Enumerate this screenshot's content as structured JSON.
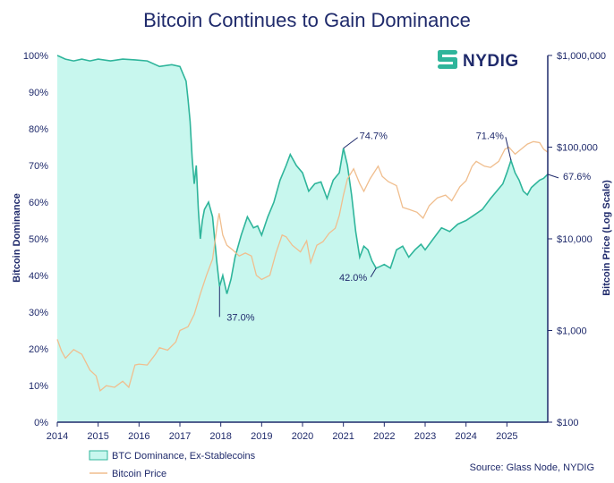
{
  "chart_data": {
    "type": "area",
    "title": "Bitcoin Continues to Gain Dominance",
    "ylabel_left": "Bitcoin Dominance",
    "ylabel_right": "Bitcoin Price (Log Scale)",
    "x_range": [
      2014,
      2026
    ],
    "x_ticks": [
      "2014",
      "2015",
      "2016",
      "2017",
      "2018",
      "2019",
      "2020",
      "2021",
      "2022",
      "2023",
      "2024",
      "2025"
    ],
    "left_axis": {
      "range": [
        0,
        100
      ],
      "ticks": [
        0,
        10,
        20,
        30,
        40,
        50,
        60,
        70,
        80,
        90,
        100
      ],
      "tick_labels": [
        "0%",
        "10%",
        "20%",
        "30%",
        "40%",
        "50%",
        "60%",
        "70%",
        "80%",
        "90%",
        "100%"
      ]
    },
    "right_axis": {
      "scale": "log",
      "range": [
        100,
        1000000
      ],
      "ticks": [
        100,
        1000,
        10000,
        100000,
        1000000
      ],
      "tick_labels": [
        "$100",
        "$1,000",
        "$10,000",
        "$100,000",
        "$1,000,000"
      ]
    },
    "legend": {
      "placement": "bottom-left"
    },
    "series": [
      {
        "name": "BTC Dominance, Ex-Stablecoins",
        "axis": "left",
        "color": "#2fb59b",
        "fill": "#c8f7ee",
        "points": [
          [
            2014.0,
            100
          ],
          [
            2014.2,
            99
          ],
          [
            2014.4,
            98.5
          ],
          [
            2014.6,
            99
          ],
          [
            2014.8,
            98.5
          ],
          [
            2015.0,
            99
          ],
          [
            2015.3,
            98.5
          ],
          [
            2015.6,
            99
          ],
          [
            2015.9,
            98.8
          ],
          [
            2016.2,
            98.5
          ],
          [
            2016.5,
            97
          ],
          [
            2016.8,
            97.5
          ],
          [
            2017.0,
            97
          ],
          [
            2017.15,
            93
          ],
          [
            2017.2,
            88
          ],
          [
            2017.25,
            82
          ],
          [
            2017.3,
            72
          ],
          [
            2017.35,
            65
          ],
          [
            2017.4,
            70
          ],
          [
            2017.45,
            58
          ],
          [
            2017.5,
            50
          ],
          [
            2017.55,
            55
          ],
          [
            2017.6,
            58
          ],
          [
            2017.7,
            60
          ],
          [
            2017.8,
            56
          ],
          [
            2017.9,
            44
          ],
          [
            2017.97,
            37
          ],
          [
            2018.05,
            40
          ],
          [
            2018.15,
            35
          ],
          [
            2018.25,
            39
          ],
          [
            2018.35,
            45
          ],
          [
            2018.5,
            51
          ],
          [
            2018.65,
            56
          ],
          [
            2018.8,
            53
          ],
          [
            2018.9,
            53.5
          ],
          [
            2019.0,
            51
          ],
          [
            2019.15,
            56
          ],
          [
            2019.3,
            60
          ],
          [
            2019.45,
            66
          ],
          [
            2019.6,
            70
          ],
          [
            2019.7,
            73
          ],
          [
            2019.85,
            70
          ],
          [
            2020.0,
            68
          ],
          [
            2020.15,
            63
          ],
          [
            2020.3,
            65
          ],
          [
            2020.45,
            65.5
          ],
          [
            2020.6,
            61
          ],
          [
            2020.75,
            66
          ],
          [
            2020.9,
            68
          ],
          [
            2021.0,
            74.7
          ],
          [
            2021.1,
            70
          ],
          [
            2021.2,
            62
          ],
          [
            2021.3,
            52
          ],
          [
            2021.4,
            45
          ],
          [
            2021.5,
            48
          ],
          [
            2021.6,
            47
          ],
          [
            2021.7,
            44
          ],
          [
            2021.8,
            42
          ],
          [
            2021.9,
            42.5
          ],
          [
            2022.0,
            43
          ],
          [
            2022.15,
            42
          ],
          [
            2022.3,
            47
          ],
          [
            2022.45,
            48
          ],
          [
            2022.6,
            45
          ],
          [
            2022.75,
            47
          ],
          [
            2022.9,
            48.5
          ],
          [
            2023.0,
            47
          ],
          [
            2023.2,
            50
          ],
          [
            2023.4,
            53
          ],
          [
            2023.6,
            52
          ],
          [
            2023.8,
            54
          ],
          [
            2024.0,
            55
          ],
          [
            2024.2,
            56.5
          ],
          [
            2024.4,
            58
          ],
          [
            2024.6,
            61
          ],
          [
            2024.75,
            63
          ],
          [
            2024.9,
            65
          ],
          [
            2025.0,
            68
          ],
          [
            2025.1,
            71.4
          ],
          [
            2025.2,
            68
          ],
          [
            2025.3,
            66
          ],
          [
            2025.4,
            63
          ],
          [
            2025.5,
            62
          ],
          [
            2025.6,
            64
          ],
          [
            2025.7,
            65
          ],
          [
            2025.8,
            66
          ],
          [
            2025.9,
            66.5
          ],
          [
            2026.0,
            67.6
          ]
        ]
      },
      {
        "name": "Bitcoin Price",
        "axis": "right",
        "color": "#f0be8e",
        "points": [
          [
            2014.0,
            800
          ],
          [
            2014.1,
            600
          ],
          [
            2014.2,
            500
          ],
          [
            2014.4,
            620
          ],
          [
            2014.6,
            550
          ],
          [
            2014.8,
            370
          ],
          [
            2014.95,
            320
          ],
          [
            2015.05,
            220
          ],
          [
            2015.2,
            250
          ],
          [
            2015.4,
            240
          ],
          [
            2015.6,
            280
          ],
          [
            2015.75,
            240
          ],
          [
            2015.9,
            420
          ],
          [
            2016.0,
            430
          ],
          [
            2016.2,
            420
          ],
          [
            2016.4,
            550
          ],
          [
            2016.5,
            650
          ],
          [
            2016.7,
            610
          ],
          [
            2016.9,
            750
          ],
          [
            2017.0,
            1000
          ],
          [
            2017.2,
            1100
          ],
          [
            2017.35,
            1500
          ],
          [
            2017.5,
            2500
          ],
          [
            2017.65,
            4000
          ],
          [
            2017.8,
            6000
          ],
          [
            2017.92,
            15000
          ],
          [
            2017.96,
            19000
          ],
          [
            2018.05,
            11000
          ],
          [
            2018.15,
            8500
          ],
          [
            2018.3,
            7500
          ],
          [
            2018.45,
            6500
          ],
          [
            2018.6,
            7000
          ],
          [
            2018.75,
            6500
          ],
          [
            2018.87,
            4000
          ],
          [
            2019.0,
            3600
          ],
          [
            2019.2,
            4000
          ],
          [
            2019.35,
            7000
          ],
          [
            2019.5,
            11000
          ],
          [
            2019.6,
            10500
          ],
          [
            2019.75,
            8500
          ],
          [
            2019.95,
            7200
          ],
          [
            2020.1,
            9500
          ],
          [
            2020.2,
            5500
          ],
          [
            2020.35,
            8500
          ],
          [
            2020.5,
            9300
          ],
          [
            2020.65,
            11500
          ],
          [
            2020.8,
            13000
          ],
          [
            2020.9,
            18000
          ],
          [
            2021.0,
            30000
          ],
          [
            2021.1,
            45000
          ],
          [
            2021.25,
            58000
          ],
          [
            2021.4,
            40000
          ],
          [
            2021.5,
            33000
          ],
          [
            2021.65,
            45000
          ],
          [
            2021.85,
            62000
          ],
          [
            2021.95,
            48000
          ],
          [
            2022.1,
            42000
          ],
          [
            2022.3,
            38000
          ],
          [
            2022.45,
            22000
          ],
          [
            2022.6,
            21000
          ],
          [
            2022.8,
            19500
          ],
          [
            2022.95,
            16800
          ],
          [
            2023.1,
            23000
          ],
          [
            2023.3,
            28000
          ],
          [
            2023.5,
            30000
          ],
          [
            2023.65,
            26000
          ],
          [
            2023.85,
            37000
          ],
          [
            2024.0,
            43000
          ],
          [
            2024.15,
            62000
          ],
          [
            2024.25,
            70000
          ],
          [
            2024.45,
            62000
          ],
          [
            2024.6,
            60000
          ],
          [
            2024.8,
            70000
          ],
          [
            2024.95,
            95000
          ],
          [
            2025.05,
            100000
          ],
          [
            2025.2,
            84000
          ],
          [
            2025.35,
            95000
          ],
          [
            2025.5,
            108000
          ],
          [
            2025.65,
            115000
          ],
          [
            2025.8,
            112000
          ],
          [
            2025.9,
            95000
          ],
          [
            2026.0,
            88000
          ]
        ]
      }
    ],
    "annotations": [
      {
        "label": "74.7%",
        "x": 2021.0,
        "y": 74.7
      },
      {
        "label": "37.0%",
        "x": 2017.97,
        "y": 37.0
      },
      {
        "label": "42.0%",
        "x": 2021.8,
        "y": 42.0
      },
      {
        "label": "71.4%",
        "x": 2025.1,
        "y": 71.4
      },
      {
        "label": "67.6%",
        "x": 2026.0,
        "y": 67.6
      }
    ]
  },
  "logo": {
    "text": "NYDIG",
    "icon": "nydig-logo-icon",
    "color": "#2fb59b"
  },
  "source": "Source: Glass Node, NYDIG"
}
